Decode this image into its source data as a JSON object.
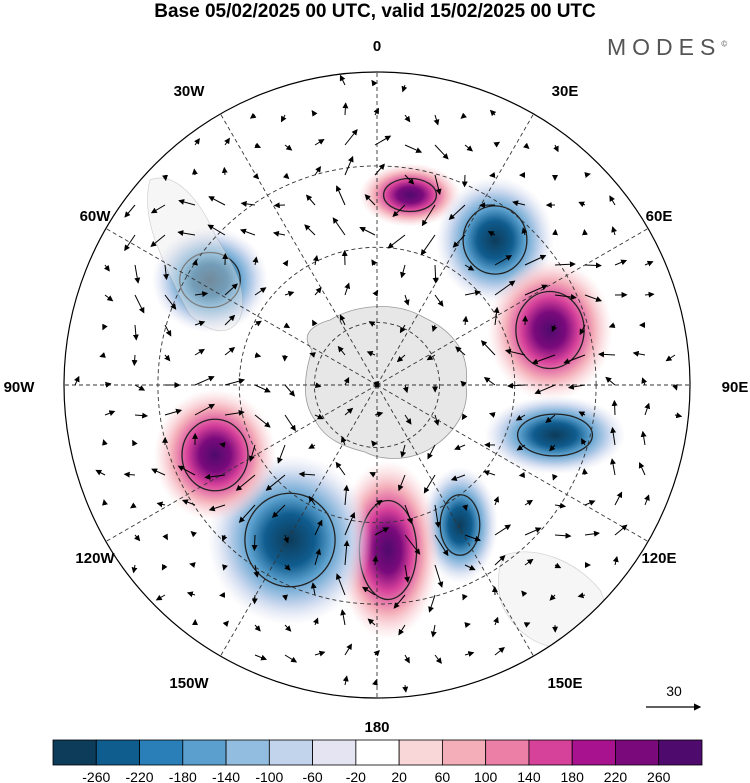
{
  "title": "Base 05/02/2025 00 UTC, valid 15/02/2025 00 UTC",
  "brand": "MODES",
  "brand_mark": "©",
  "longitude_labels": [
    "0",
    "30E",
    "60E",
    "90E",
    "120E",
    "150E",
    "180",
    "150W",
    "120W",
    "90W",
    "60W",
    "30W"
  ],
  "vector_reference": "30",
  "colorbar": {
    "labels": [
      "-260",
      "-220",
      "-180",
      "-140",
      "-100",
      "-60",
      "-20",
      "20",
      "60",
      "100",
      "140",
      "180",
      "220",
      "260"
    ],
    "colors": [
      "#0d3b5a",
      "#0f5c8e",
      "#2b7fb8",
      "#5a9fcd",
      "#93bde0",
      "#c2d3ec",
      "#e4e4f2",
      "#ffffff",
      "#f9d6d8",
      "#f4aeb9",
      "#ec7fa6",
      "#d6419a",
      "#a8128e",
      "#7a0a7c",
      "#4f0a6e"
    ]
  },
  "anomalies": [
    {
      "sign": "positive",
      "value": 140
    },
    {
      "sign": "negative",
      "value": -240
    },
    {
      "sign": "positive",
      "value": 250
    },
    {
      "sign": "negative",
      "value": -200
    },
    {
      "sign": "negative",
      "value": -140
    },
    {
      "sign": "positive",
      "value": 280
    },
    {
      "sign": "negative",
      "value": -270
    },
    {
      "sign": "positive",
      "value": 230
    },
    {
      "sign": "negative",
      "value": -150
    }
  ]
}
